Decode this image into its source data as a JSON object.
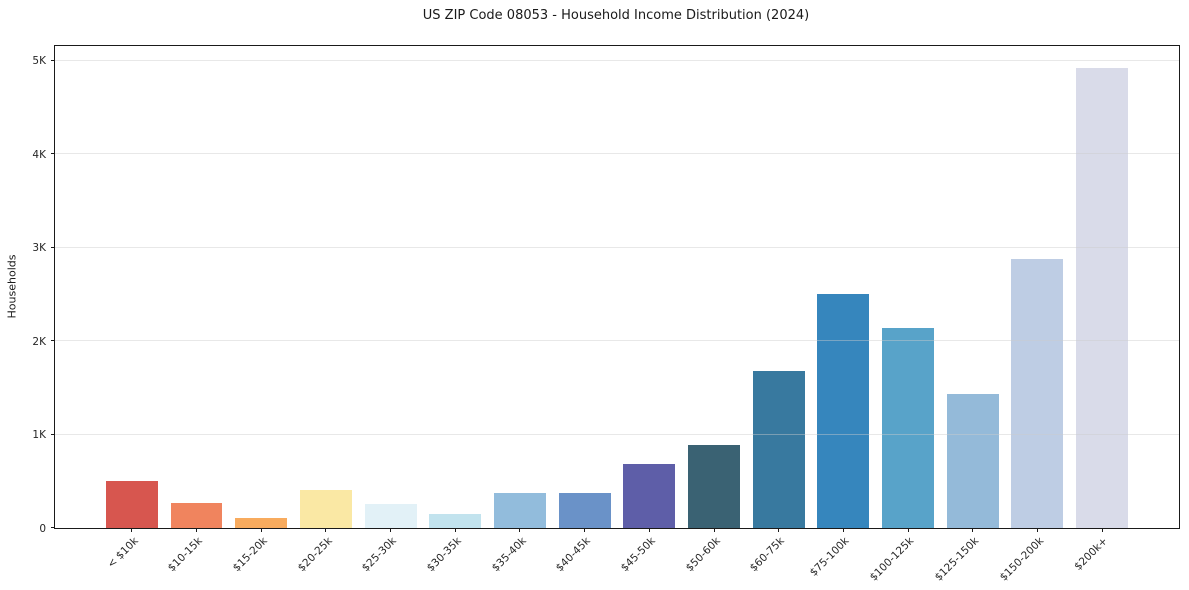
{
  "chart_data": {
    "type": "bar",
    "title": "US ZIP Code 08053 - Household Income Distribution (2024)",
    "xlabel": "",
    "ylabel": "Households",
    "categories": [
      "< $10k",
      "$10-15k",
      "$15-20k",
      "$20-25k",
      "$25-30k",
      "$30-35k",
      "$35-40k",
      "$40-45k",
      "$45-50k",
      "$50-60k",
      "$60-75k",
      "$75-100k",
      "$100-125k",
      "$125-150k",
      "$150-200k",
      "$200k+"
    ],
    "values": [
      500,
      265,
      110,
      410,
      260,
      150,
      380,
      370,
      680,
      890,
      1680,
      2500,
      2140,
      1430,
      2880,
      4920
    ],
    "bar_colors": [
      "#d7564f",
      "#f0845e",
      "#f8ab5e",
      "#fae8a4",
      "#e2f1f7",
      "#c2e3ee",
      "#92bcdc",
      "#6a92c8",
      "#5e5ea8",
      "#3a6273",
      "#38799f",
      "#3686bd",
      "#58a3c9",
      "#94bad9",
      "#becde4",
      "#d9dbe9"
    ],
    "yticks": {
      "values": [
        0,
        1000,
        2000,
        3000,
        4000,
        5000
      ],
      "labels": [
        "0",
        "1K",
        "2K",
        "3K",
        "4K",
        "5K"
      ]
    },
    "ylim": [
      0,
      5160
    ],
    "grid": "horizontal-only",
    "legend": "none",
    "colors": {
      "background": "#ffffff",
      "axis": "#1a1a1a",
      "tick_text": "#262626",
      "grid": "#cdcdcd"
    }
  }
}
